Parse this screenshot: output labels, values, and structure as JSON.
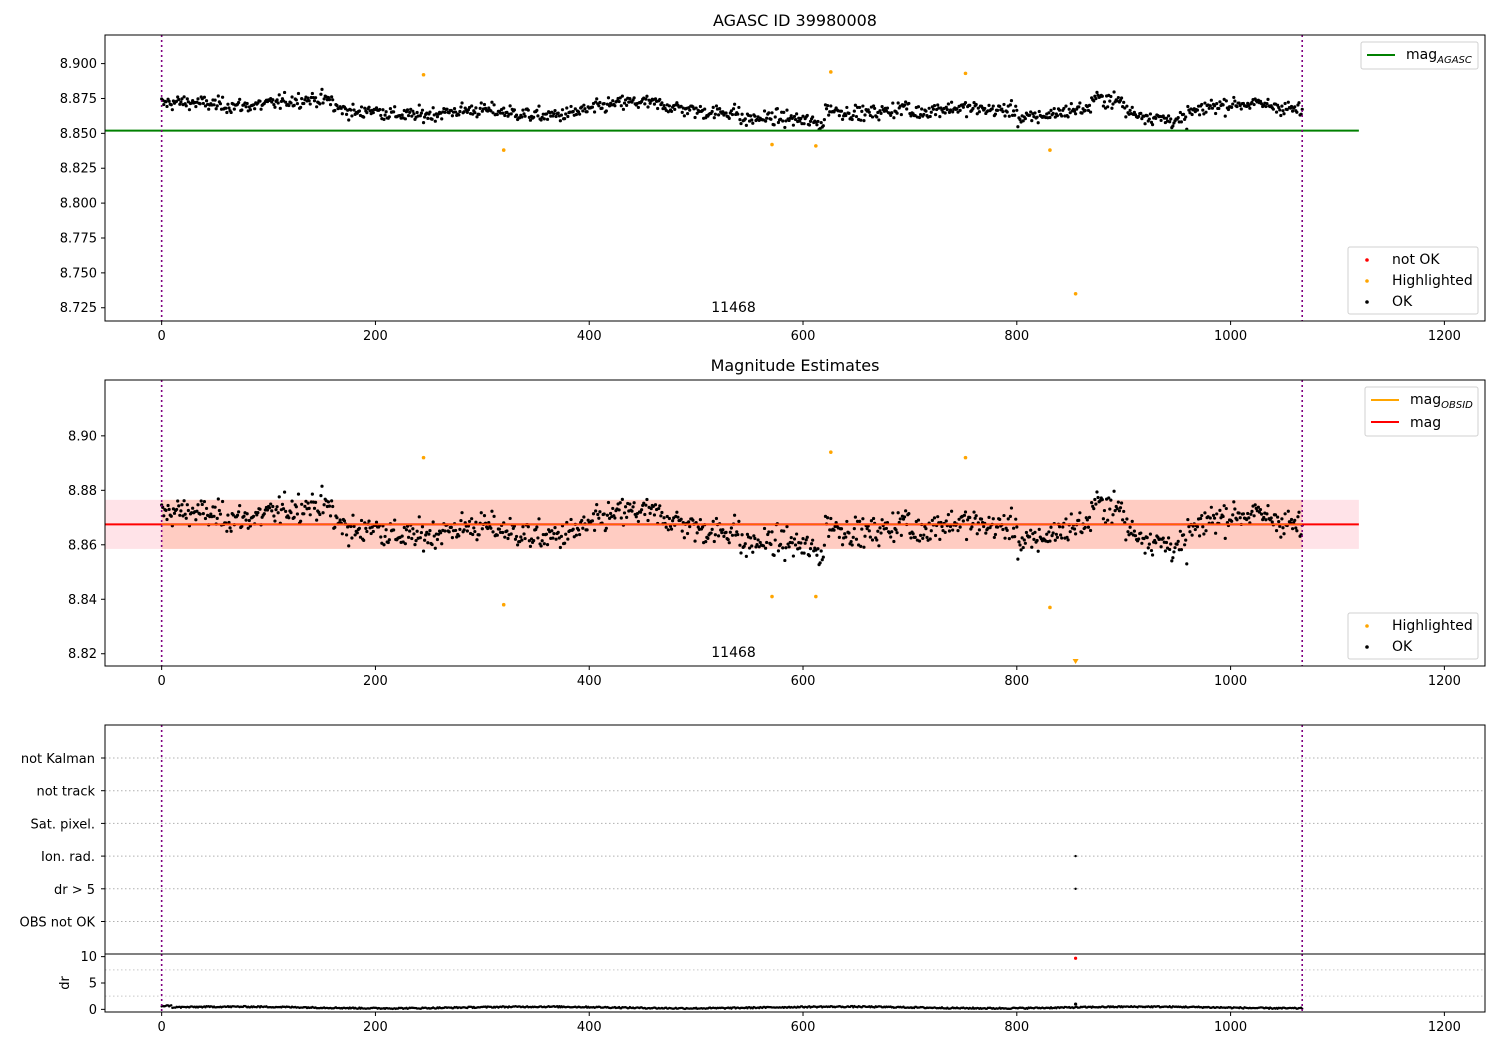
{
  "chart_data": [
    {
      "type": "scatter",
      "title": "AGASC ID 39980008",
      "xlim": [
        -53,
        1238
      ],
      "ylim": [
        8.7155,
        8.9205
      ],
      "x_ticks": [
        0,
        200,
        400,
        600,
        800,
        1000,
        1200
      ],
      "y_ticks": [
        8.725,
        8.75,
        8.775,
        8.8,
        8.825,
        8.85,
        8.875,
        8.9
      ],
      "y_tick_labels": [
        "8.725",
        "8.750",
        "8.775",
        "8.800",
        "8.825",
        "8.850",
        "8.875",
        "8.900"
      ],
      "obs_lines_x": [
        0,
        1067
      ],
      "obsid_label": "11468",
      "obsid_label_x": 535,
      "hline": {
        "name": "mag_AGASC",
        "y": 8.852,
        "x_range": [
          -53,
          1120
        ],
        "color": "#008000"
      },
      "legend_line": {
        "label": "mag",
        "subscript": "AGASC",
        "color": "#008000",
        "position": "top-right"
      },
      "legend_points": {
        "position": "bottom-right",
        "items": [
          {
            "label": "not OK",
            "color": "#ff0000"
          },
          {
            "label": "Highlighted",
            "color": "#ffa500"
          },
          {
            "label": "OK",
            "color": "#000000"
          }
        ]
      },
      "highlighted_points": [
        [
          245,
          8.892
        ],
        [
          320,
          8.838
        ],
        [
          571,
          8.842
        ],
        [
          612,
          8.841
        ],
        [
          626,
          8.894
        ],
        [
          752,
          8.893
        ],
        [
          831,
          8.838
        ],
        [
          855,
          8.735
        ]
      ],
      "ok_series": {
        "n_points": 1068,
        "x_range": [
          0,
          1067
        ],
        "center": 8.867,
        "spread": 0.02,
        "min": 8.845,
        "max": 8.892
      }
    },
    {
      "type": "scatter",
      "title": "Magnitude Estimates",
      "xlim": [
        -53,
        1238
      ],
      "ylim": [
        8.8155,
        8.9205
      ],
      "x_ticks": [
        0,
        200,
        400,
        600,
        800,
        1000,
        1200
      ],
      "y_ticks": [
        8.82,
        8.84,
        8.86,
        8.88,
        8.9
      ],
      "y_tick_labels": [
        "8.82",
        "8.84",
        "8.86",
        "8.88",
        "8.90"
      ],
      "obs_lines_x": [
        0,
        1067
      ],
      "obsid_label": "11468",
      "obsid_label_x": 535,
      "mag_line": {
        "y": 8.8675,
        "color": "#ff0000"
      },
      "mag_obsid_line": {
        "y": 8.8675,
        "color": "#ffa500"
      },
      "band": {
        "y_low": 8.8585,
        "y_high": 8.8765,
        "x_range": [
          -53,
          1120
        ]
      },
      "legend_lines": {
        "position": "top-right",
        "items": [
          {
            "label": "mag",
            "subscript": "OBSID",
            "color": "#ffa500"
          },
          {
            "label": "mag",
            "subscript": "",
            "color": "#ff0000"
          }
        ]
      },
      "legend_points": {
        "position": "bottom-right",
        "items": [
          {
            "label": "Highlighted",
            "color": "#ffa500"
          },
          {
            "label": "OK",
            "color": "#000000"
          }
        ]
      },
      "highlighted_points": [
        [
          245,
          8.892
        ],
        [
          320,
          8.838
        ],
        [
          571,
          8.841
        ],
        [
          612,
          8.841
        ],
        [
          626,
          8.894
        ],
        [
          752,
          8.892
        ],
        [
          831,
          8.837
        ]
      ],
      "ok_series": {
        "n_points": 1068,
        "x_range": [
          0,
          1067
        ],
        "center": 8.867,
        "spread": 0.02,
        "min": 8.845,
        "max": 8.892
      }
    },
    {
      "type": "scatter",
      "title": "",
      "xlim": [
        -53,
        1238
      ],
      "flag_categories": [
        "not Kalman",
        "not track",
        "Sat. pixel.",
        "Ion. rad.",
        "dr > 5",
        "OBS not OK"
      ],
      "flag_points": [
        {
          "category": "Ion. rad.",
          "x": 855
        },
        {
          "category": "dr > 5",
          "x": 855
        }
      ],
      "obs_lines_x": [
        0,
        1067
      ]
    },
    {
      "type": "scatter",
      "xlabel": "",
      "ylabel": "dr",
      "xlim": [
        -53,
        1238
      ],
      "ylim": [
        -0.5,
        10.5
      ],
      "x_ticks": [
        0,
        200,
        400,
        600,
        800,
        1000,
        1200
      ],
      "y_ticks": [
        0,
        5,
        10
      ],
      "obs_lines_x": [
        0,
        1067
      ],
      "dr_series": {
        "n_points": 1068,
        "x_range": [
          0,
          1067
        ],
        "typical": 0.35
      },
      "outlier_points": [
        {
          "x": 855,
          "y": 9.7,
          "color": "#ff0000"
        },
        {
          "x": 855,
          "y": 1.0,
          "color": "#000000"
        }
      ]
    }
  ]
}
